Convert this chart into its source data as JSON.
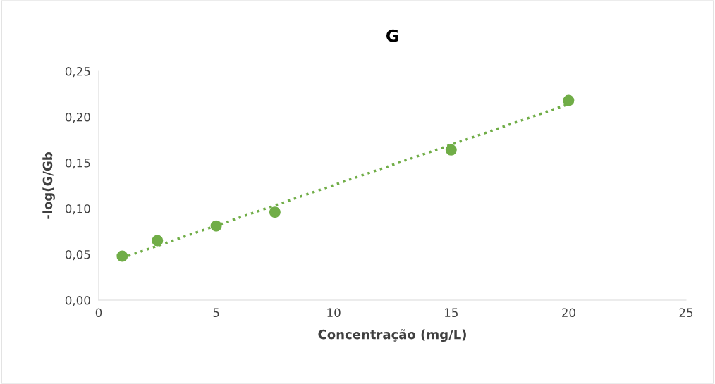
{
  "chart_data": {
    "type": "scatter",
    "title": "G",
    "xlabel": "Concentração (mg/L)",
    "ylabel": "-log(G/Gb",
    "series": [
      {
        "color": "#70ad47",
        "x": [
          1,
          2.5,
          5,
          7.5,
          15,
          20
        ],
        "values": [
          0.048,
          0.065,
          0.081,
          0.096,
          0.164,
          0.218
        ],
        "marker": "circle"
      },
      {
        "type": "line",
        "color": "#70ad47",
        "x": [
          1,
          20
        ],
        "values": [
          0.046,
          0.214
        ],
        "line_style": "dotted"
      }
    ],
    "xlim": [
      0,
      25
    ],
    "xticks": [
      0,
      5,
      10,
      15,
      20,
      25
    ],
    "ylim": [
      0,
      0.25
    ],
    "yticks": [
      {
        "value": 0,
        "label": "0,00"
      },
      {
        "value": 0.05,
        "label": "0,05"
      },
      {
        "value": 0.1,
        "label": "0,10"
      },
      {
        "value": 0.15,
        "label": "0,15"
      },
      {
        "value": 0.2,
        "label": "0,20"
      },
      {
        "value": 0.25,
        "label": "0,25"
      }
    ],
    "grid": false,
    "legend": false
  }
}
